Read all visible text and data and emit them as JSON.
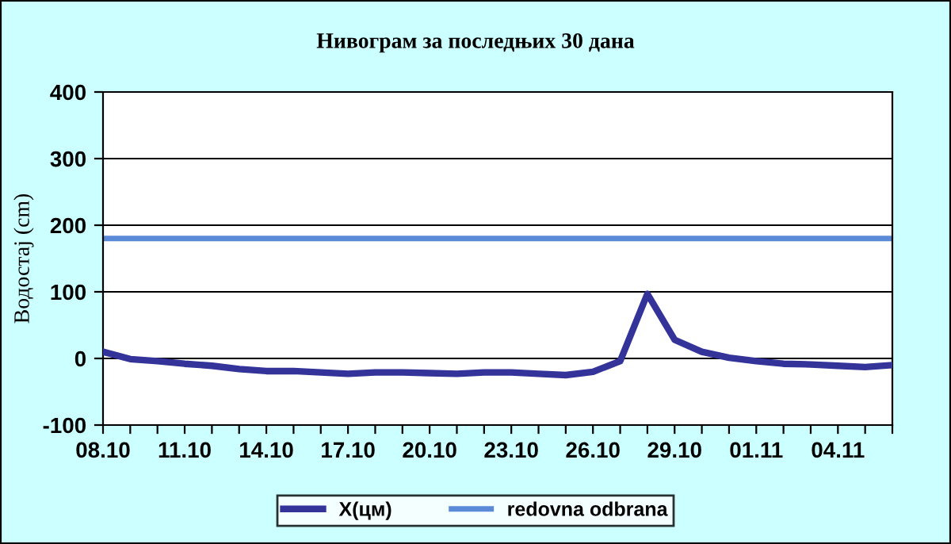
{
  "chart_data": {
    "type": "line",
    "title": "Нивограм за последњих 30 дана",
    "ylabel": "Водостај (cm)",
    "categories": [
      "08.10",
      null,
      null,
      "11.10",
      null,
      null,
      "14.10",
      null,
      null,
      "17.10",
      null,
      null,
      "20.10",
      null,
      null,
      "23.10",
      null,
      null,
      "26.10",
      null,
      null,
      "29.10",
      null,
      null,
      "01.11",
      null,
      null,
      "04.11",
      null,
      null
    ],
    "series": [
      {
        "name": "X(цм)",
        "color": "#333399",
        "values": [
          10,
          -1,
          -4,
          -8,
          -11,
          -16,
          -19,
          -19,
          -21,
          -23,
          -21,
          -21,
          -22,
          -23,
          -21,
          -21,
          -23,
          -25,
          -20,
          -4,
          97,
          28,
          10,
          1,
          -4,
          -8,
          -9,
          -11,
          -13,
          -10
        ]
      }
    ],
    "ref_lines": [
      {
        "axis": "y",
        "value": 180,
        "label": "redovna odbrana",
        "color": "#5b8ad8"
      }
    ],
    "ylim": [
      -100,
      400
    ],
    "yticks": [
      -100,
      0,
      100,
      200,
      300,
      400
    ],
    "grid": "y",
    "legend": "bottom",
    "marker": "none",
    "line_style": "solid"
  }
}
